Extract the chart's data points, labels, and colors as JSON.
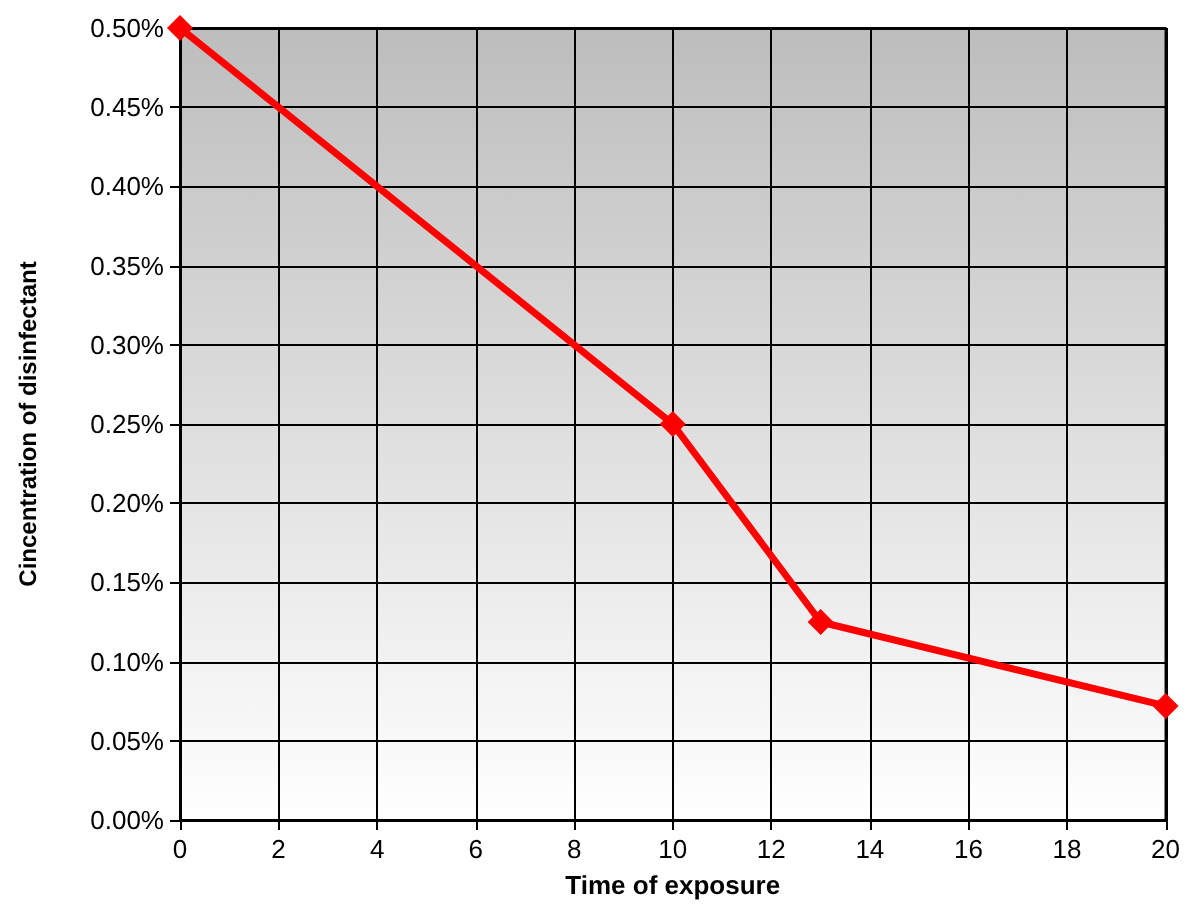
{
  "chart_data": {
    "type": "line",
    "xlabel": "Time of exposure",
    "ylabel": "Cincentration of disinfectant",
    "x": [
      0,
      10,
      13,
      20
    ],
    "series": [
      {
        "color": "#ff0000",
        "values": [
          0.5,
          0.25,
          0.125,
          0.072
        ]
      }
    ],
    "xlim": [
      0,
      20
    ],
    "xticks": [
      0,
      2,
      4,
      6,
      8,
      10,
      12,
      14,
      16,
      18,
      20
    ],
    "ylim": [
      0,
      0.5
    ],
    "yticks": [
      {
        "value": 0,
        "label": "0.00%"
      },
      {
        "value": 0.05,
        "label": "0.05%"
      },
      {
        "value": 0.1,
        "label": "0.10%"
      },
      {
        "value": 0.15,
        "label": "0.15%"
      },
      {
        "value": 0.2,
        "label": "0.20%"
      },
      {
        "value": 0.25,
        "label": "0.25%"
      },
      {
        "value": 0.3,
        "label": "0.30%"
      },
      {
        "value": 0.35,
        "label": "0.35%"
      },
      {
        "value": 0.4,
        "label": "0.40%"
      },
      {
        "value": 0.45,
        "label": "0.45%"
      },
      {
        "value": 0.5,
        "label": "0.50%"
      }
    ],
    "grid": true,
    "marker": "diamond",
    "line_style": "solid"
  }
}
